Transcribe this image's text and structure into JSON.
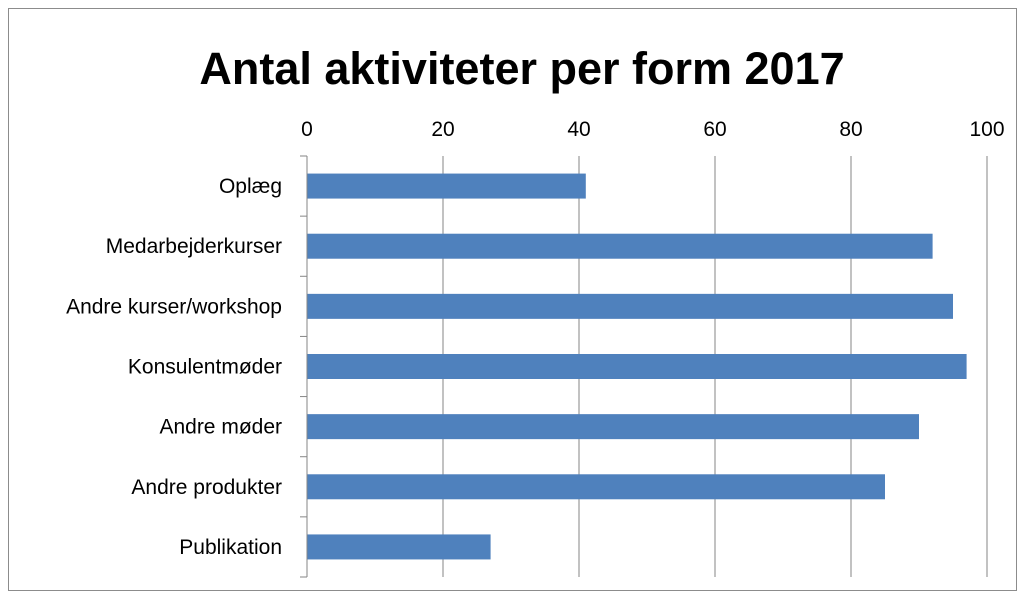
{
  "chart_data": {
    "type": "bar",
    "orientation": "horizontal",
    "title": "Antal aktiviteter per form 2017",
    "xlabel": "",
    "ylabel": "",
    "categories": [
      "Oplæg",
      "Medarbejderkurser",
      "Andre kurser/workshop",
      "Konsulentmøder",
      "Andre møder",
      "Andre produkter",
      "Publikation"
    ],
    "values": [
      41,
      92,
      95,
      97,
      90,
      85,
      27
    ],
    "xlim": [
      0,
      100
    ],
    "ticks": [
      "0",
      "20",
      "40",
      "60",
      "80",
      "100"
    ],
    "tick_values": [
      0,
      20,
      40,
      60,
      80,
      100
    ],
    "axis_position": "top",
    "grid": true,
    "legend": "none",
    "bar_color": "#4F81BD",
    "grid_color": "#868686"
  }
}
